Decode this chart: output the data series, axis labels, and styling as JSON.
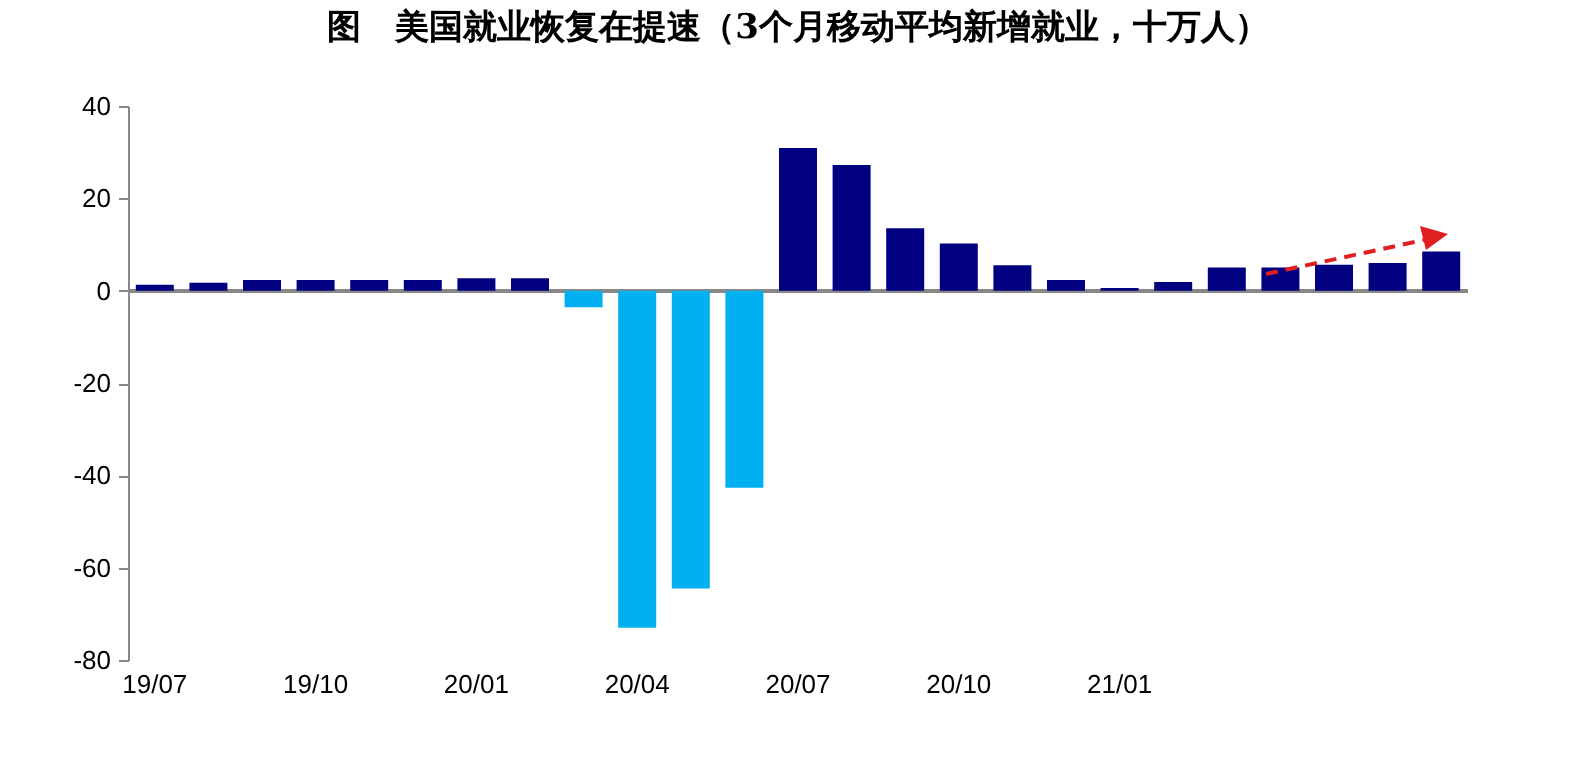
{
  "chart_data": {
    "type": "bar",
    "title": "图　美国就业恢复在提速（3个月移动平均新增就业，十万人）",
    "categories": [
      "19/07",
      null,
      null,
      "19/10",
      null,
      null,
      "20/01",
      null,
      null,
      "20/04",
      null,
      null,
      "20/07",
      null,
      null,
      "20/10",
      null,
      null,
      "21/01",
      null,
      null,
      null,
      null,
      null,
      null
    ],
    "values": [
      1.3,
      1.7,
      2.3,
      2.3,
      2.3,
      2.3,
      2.7,
      2.7,
      -3.6,
      -73,
      -64.5,
      -42.7,
      30.9,
      27.2,
      13.5,
      10.2,
      5.5,
      2.3,
      0.6,
      1.9,
      5.0,
      5.0,
      5.6,
      6.0,
      8.5
    ],
    "colors": [
      "#000080",
      "#000080",
      "#000080",
      "#000080",
      "#000080",
      "#000080",
      "#000080",
      "#000080",
      "#00b0f0",
      "#00b0f0",
      "#00b0f0",
      "#00b0f0",
      "#000080",
      "#000080",
      "#000080",
      "#000080",
      "#000080",
      "#000080",
      "#000080",
      "#000080",
      "#000080",
      "#000080",
      "#000080",
      "#000080",
      "#000080"
    ],
    "ylim": [
      -80,
      40
    ],
    "yticks": [
      -80,
      -60,
      -40,
      -20,
      0,
      20,
      40
    ]
  }
}
